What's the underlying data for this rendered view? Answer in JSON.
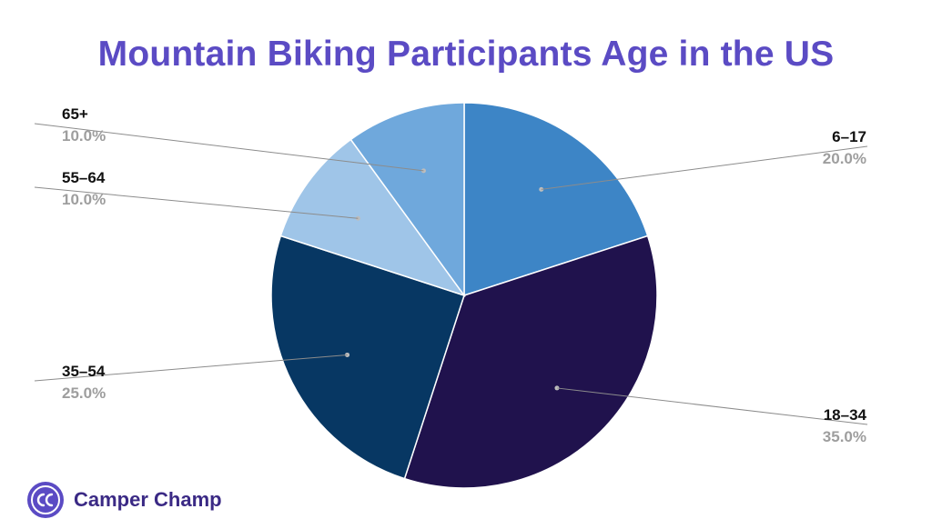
{
  "chart_data": {
    "type": "pie",
    "title": "Mountain Biking Participants Age in the US",
    "slices": [
      {
        "label": "6–17",
        "value": 20.0,
        "display": "20.0%",
        "color": "#3d85c6",
        "label_side": "right"
      },
      {
        "label": "18–34",
        "value": 35.0,
        "display": "35.0%",
        "color": "#20124d",
        "label_side": "right"
      },
      {
        "label": "35–54",
        "value": 25.0,
        "display": "25.0%",
        "color": "#073763",
        "label_side": "left"
      },
      {
        "label": "55–64",
        "value": 10.0,
        "display": "10.0%",
        "color": "#9fc5e8",
        "label_side": "left"
      },
      {
        "label": "65+",
        "value": 10.0,
        "display": "10.0%",
        "color": "#6fa8dc",
        "label_side": "left"
      }
    ],
    "start_direction": "top",
    "direction": "clockwise"
  },
  "colors": {
    "title": "#5b4bc4",
    "logo_badge": "#5b4bc4",
    "logo_text": "#3b2a85",
    "leader_line": "#8c8c8c",
    "slice_border": "#ffffff"
  },
  "brand": {
    "name": "Camper Champ",
    "badge_icon": "cc-logo-icon"
  }
}
